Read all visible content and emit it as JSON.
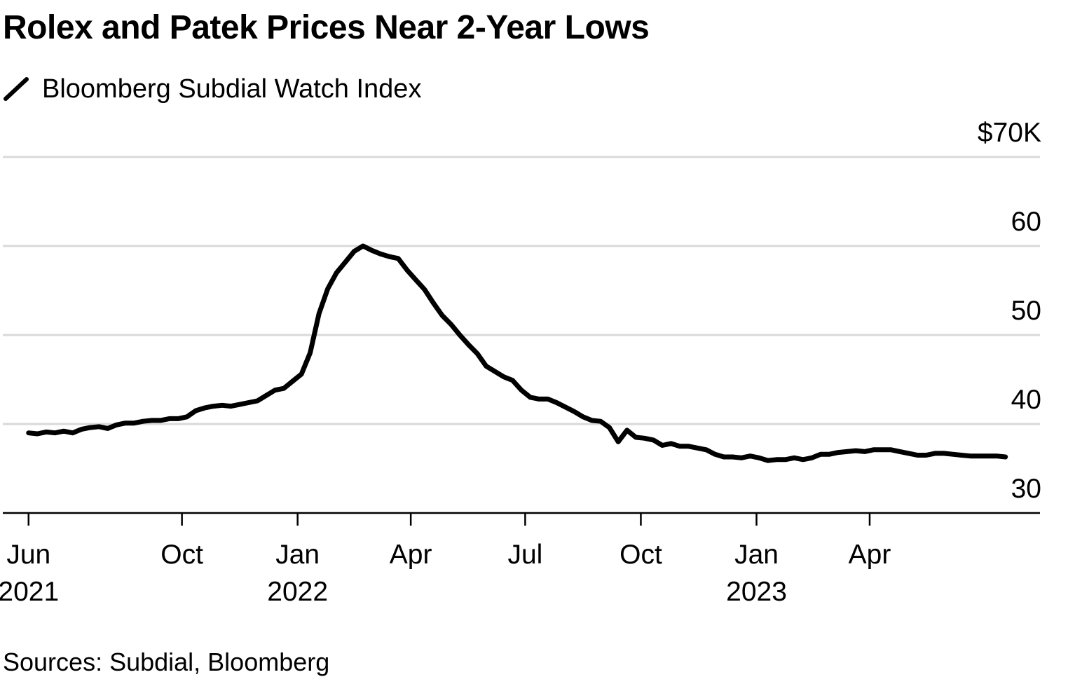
{
  "title": "Rolex and Patek Prices Near 2-Year Lows",
  "source": "Sources: Subdial, Bloomberg",
  "colors": {
    "line": "#000000",
    "grid": "#d9d9d9",
    "axis": "#000000",
    "text": "#000000"
  },
  "chart_data": {
    "type": "line",
    "title": "Rolex and Patek Prices Near 2-Year Lows",
    "xlabel": "",
    "ylabel": "",
    "ylim": [
      30,
      70
    ],
    "xlim": [
      "2021-05-26",
      "2023-08-10"
    ],
    "grid": true,
    "legend": "top-left",
    "y_ticks": [
      {
        "value": 30,
        "label": "30"
      },
      {
        "value": 40,
        "label": "40"
      },
      {
        "value": 50,
        "label": "50"
      },
      {
        "value": 60,
        "label": "60"
      },
      {
        "value": 70,
        "label": "$70K"
      }
    ],
    "x_ticks": [
      {
        "date": "2021-06-01",
        "label": "Jun",
        "sublabel": "2021"
      },
      {
        "date": "2021-10-01",
        "label": "Oct",
        "sublabel": ""
      },
      {
        "date": "2022-01-01",
        "label": "Jan",
        "sublabel": "2022"
      },
      {
        "date": "2022-04-01",
        "label": "Apr",
        "sublabel": ""
      },
      {
        "date": "2022-07-01",
        "label": "Jul",
        "sublabel": ""
      },
      {
        "date": "2022-10-01",
        "label": "Oct",
        "sublabel": ""
      },
      {
        "date": "2023-01-01",
        "label": "Jan",
        "sublabel": "2023"
      },
      {
        "date": "2023-04-01",
        "label": "Apr",
        "sublabel": ""
      }
    ],
    "series": [
      {
        "name": "Bloomberg Subdial Watch Index",
        "x": [
          "2021-06-01",
          "2021-06-08",
          "2021-06-15",
          "2021-06-22",
          "2021-06-29",
          "2021-07-06",
          "2021-07-13",
          "2021-07-20",
          "2021-07-27",
          "2021-08-03",
          "2021-08-10",
          "2021-08-17",
          "2021-08-24",
          "2021-08-31",
          "2021-09-07",
          "2021-09-14",
          "2021-09-21",
          "2021-09-28",
          "2021-10-05",
          "2021-10-12",
          "2021-10-19",
          "2021-10-26",
          "2021-11-02",
          "2021-11-09",
          "2021-11-16",
          "2021-11-23",
          "2021-11-30",
          "2021-12-07",
          "2021-12-14",
          "2021-12-21",
          "2021-12-28",
          "2022-01-04",
          "2022-01-11",
          "2022-01-18",
          "2022-01-25",
          "2022-02-01",
          "2022-02-08",
          "2022-02-15",
          "2022-02-22",
          "2022-03-01",
          "2022-03-08",
          "2022-03-15",
          "2022-03-22",
          "2022-03-29",
          "2022-04-05",
          "2022-04-12",
          "2022-04-19",
          "2022-04-26",
          "2022-05-03",
          "2022-05-10",
          "2022-05-17",
          "2022-05-24",
          "2022-05-31",
          "2022-06-07",
          "2022-06-14",
          "2022-06-21",
          "2022-06-28",
          "2022-07-05",
          "2022-07-12",
          "2022-07-19",
          "2022-07-26",
          "2022-08-02",
          "2022-08-09",
          "2022-08-16",
          "2022-08-23",
          "2022-08-30",
          "2022-09-06",
          "2022-09-13",
          "2022-09-20",
          "2022-09-27",
          "2022-10-04",
          "2022-10-11",
          "2022-10-18",
          "2022-10-25",
          "2022-11-01",
          "2022-11-08",
          "2022-11-15",
          "2022-11-22",
          "2022-11-29",
          "2022-12-06",
          "2022-12-13",
          "2022-12-20",
          "2022-12-27",
          "2023-01-03",
          "2023-01-10",
          "2023-01-17",
          "2023-01-24",
          "2023-01-31",
          "2023-02-07",
          "2023-02-14",
          "2023-02-21",
          "2023-02-28",
          "2023-03-07",
          "2023-03-14",
          "2023-03-21",
          "2023-03-28",
          "2023-04-04",
          "2023-04-11",
          "2023-04-18",
          "2023-04-25",
          "2023-05-02",
          "2023-05-09",
          "2023-05-16",
          "2023-05-23",
          "2023-05-30",
          "2023-06-06",
          "2023-06-13",
          "2023-06-20",
          "2023-06-27",
          "2023-07-04",
          "2023-07-11",
          "2023-07-18"
        ],
        "values": [
          39.0,
          38.9,
          39.1,
          39.0,
          39.2,
          39.0,
          39.4,
          39.6,
          39.7,
          39.5,
          39.9,
          40.1,
          40.1,
          40.3,
          40.4,
          40.4,
          40.6,
          40.6,
          40.8,
          41.5,
          41.8,
          42.0,
          42.1,
          42.0,
          42.2,
          42.4,
          42.6,
          43.2,
          43.8,
          44.0,
          44.8,
          45.6,
          48.0,
          52.4,
          55.2,
          57.0,
          58.2,
          59.4,
          60.0,
          59.5,
          59.1,
          58.8,
          58.6,
          57.3,
          56.2,
          55.1,
          53.6,
          52.2,
          51.2,
          50.0,
          48.9,
          47.9,
          46.5,
          45.9,
          45.3,
          44.9,
          43.8,
          43.0,
          42.8,
          42.8,
          42.4,
          41.9,
          41.4,
          40.8,
          40.4,
          40.3,
          39.6,
          38.0,
          39.3,
          38.5,
          38.4,
          38.2,
          37.6,
          37.8,
          37.5,
          37.5,
          37.3,
          37.1,
          36.6,
          36.3,
          36.3,
          36.2,
          36.4,
          36.2,
          35.9,
          36.0,
          36.0,
          36.2,
          36.0,
          36.2,
          36.6,
          36.6,
          36.8,
          36.9,
          37.0,
          36.9,
          37.1,
          37.1,
          37.1,
          36.9,
          36.7,
          36.5,
          36.5,
          36.7,
          36.7,
          36.6,
          36.5,
          36.4,
          36.4,
          36.4,
          36.4,
          36.3
        ]
      }
    ]
  }
}
